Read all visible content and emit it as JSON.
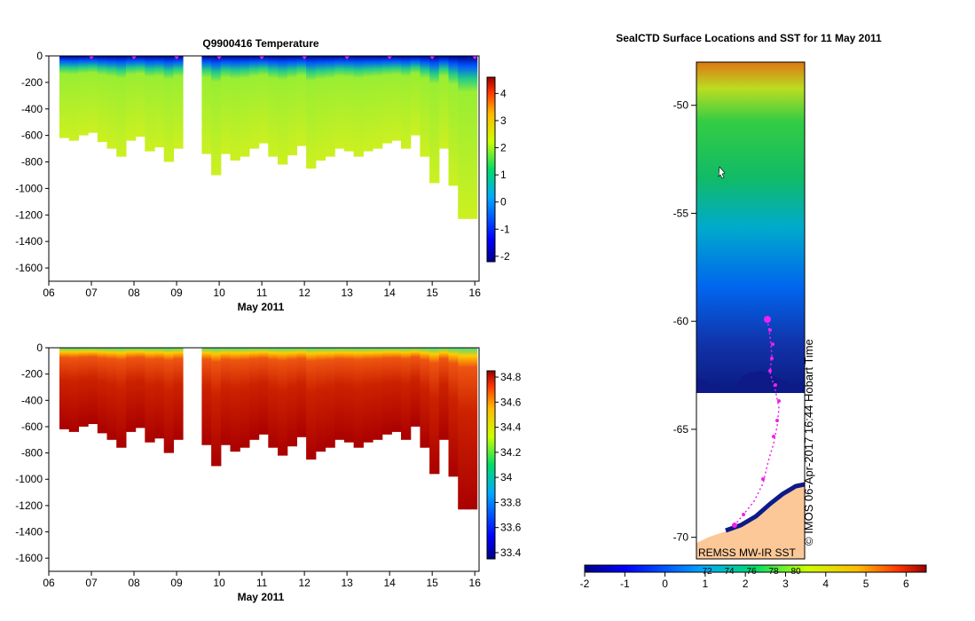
{
  "chart_data": [
    {
      "type": "heatmap",
      "title": "Q9900416  Temperature",
      "xlabel": "May 2011",
      "x_ticks": [
        "06",
        "07",
        "08",
        "09",
        "10",
        "11",
        "12",
        "13",
        "14",
        "15",
        "16"
      ],
      "xlim": [
        6,
        16.1
      ],
      "y_ticks": [
        "0",
        "-200",
        "-400",
        "-600",
        "-800",
        "-1000",
        "-1200",
        "-1400",
        "-1600"
      ],
      "ylim": [
        -1700,
        0
      ],
      "colorbar": {
        "ticks": [
          "-2",
          "-1",
          "0",
          "1",
          "2",
          "3",
          "4"
        ],
        "range": [
          -2.2,
          4.6
        ]
      },
      "profile_max_depth": [
        -620,
        -640,
        -600,
        -580,
        -650,
        -700,
        -760,
        -640,
        -610,
        -720,
        -690,
        -800,
        -700,
        -650,
        -760,
        -740,
        -900,
        -740,
        -790,
        -760,
        -700,
        -660,
        -760,
        -820,
        -750,
        -680,
        -850,
        -790,
        -760,
        -700,
        -720,
        -760,
        -720,
        -700,
        -660,
        -640,
        -700,
        -600,
        -760,
        -960,
        -700,
        -980,
        -1230,
        -1230
      ],
      "surface_value": -1.5,
      "deep_value": 2.4
    },
    {
      "type": "heatmap",
      "title": "",
      "xlabel": "May 2011",
      "x_ticks": [
        "06",
        "07",
        "08",
        "09",
        "10",
        "11",
        "12",
        "13",
        "14",
        "15",
        "16"
      ],
      "xlim": [
        6,
        16.1
      ],
      "y_ticks": [
        "0",
        "-200",
        "-400",
        "-600",
        "-800",
        "-1000",
        "-1200",
        "-1400",
        "-1600"
      ],
      "ylim": [
        -1700,
        0
      ],
      "colorbar": {
        "ticks": [
          "33.4",
          "33.6",
          "33.8",
          "34",
          "34.2",
          "34.4",
          "34.6",
          "34.8"
        ],
        "range": [
          33.35,
          34.85
        ]
      },
      "surface_value": 33.9,
      "deep_value": 34.7
    },
    {
      "type": "heatmap",
      "title": "SealCTD Surface Locations and SST for 11 May 2011",
      "y_ticks": [
        "-50",
        "-55",
        "-60",
        "-65",
        "-70"
      ],
      "ylim": [
        -71,
        -48
      ],
      "colorbar": {
        "ticks": [
          "-2",
          "-1",
          "0",
          "1",
          "2",
          "3",
          "4",
          "5",
          "6"
        ],
        "range": [
          -2,
          6.5
        ]
      },
      "colorbar_secondary_ticks": [
        "72",
        "74",
        "76",
        "78",
        "80"
      ],
      "source_label": "REMSS MW-IR SST",
      "credit_label": "© IMOS 06-Apr-2017 16:44 Hobart Time"
    }
  ]
}
